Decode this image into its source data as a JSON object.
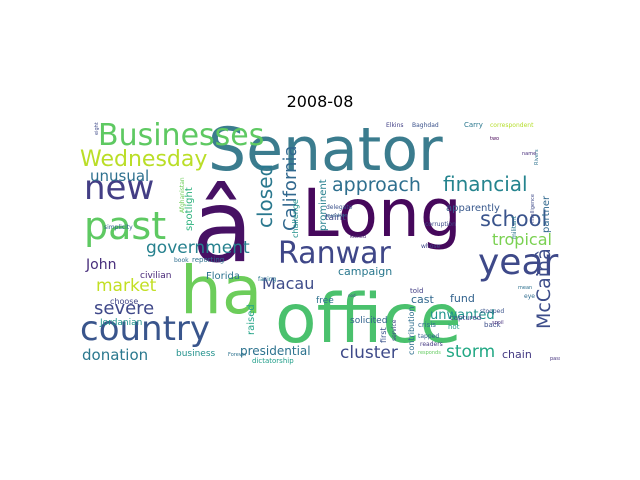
{
  "title": "2008-08",
  "words": [
    {
      "text": "Senator",
      "color": "#3b7c8e"
    },
    {
      "text": "Long",
      "color": "#46085c"
    },
    {
      "text": "â",
      "color": "#471164"
    },
    {
      "text": "ha",
      "color": "#6ccd5a"
    },
    {
      "text": "office",
      "color": "#4ac16d"
    },
    {
      "text": "Businesses",
      "color": "#5ec962"
    },
    {
      "text": "new",
      "color": "#433e85"
    },
    {
      "text": "past",
      "color": "#5ec962"
    },
    {
      "text": "country",
      "color": "#39558c"
    },
    {
      "text": "Ranwar",
      "color": "#3f4788"
    },
    {
      "text": "year",
      "color": "#3e4989"
    },
    {
      "text": "Wednesday",
      "color": "#bade28"
    },
    {
      "text": "government",
      "color": "#26818e"
    },
    {
      "text": "closed",
      "color": "#2a788e"
    },
    {
      "text": "California",
      "color": "#31688e"
    },
    {
      "text": "approach",
      "color": "#2e6f8e"
    },
    {
      "text": "financial",
      "color": "#25848e"
    },
    {
      "text": "school",
      "color": "#3a548c"
    },
    {
      "text": "tropical",
      "color": "#7ad151"
    },
    {
      "text": "unusual",
      "color": "#2d708e"
    },
    {
      "text": "McCainâ",
      "color": "#3d4d8a"
    },
    {
      "text": "market",
      "color": "#c2df23"
    },
    {
      "text": "severe",
      "color": "#3f4889"
    },
    {
      "text": "John",
      "color": "#472d7b"
    },
    {
      "text": "Macau",
      "color": "#3e4c8a"
    },
    {
      "text": "donation",
      "color": "#2a788e"
    },
    {
      "text": "cluster",
      "color": "#3e4a89"
    },
    {
      "text": "storm",
      "color": "#22a884"
    },
    {
      "text": "unwanted",
      "color": "#1f948c"
    },
    {
      "text": "campaign",
      "color": "#2a788e"
    },
    {
      "text": "presidential",
      "color": "#2c728e"
    },
    {
      "text": "fund",
      "color": "#33638d"
    },
    {
      "text": "chain",
      "color": "#443983"
    },
    {
      "text": "cast",
      "color": "#31688e"
    },
    {
      "text": "prominent",
      "color": "#27808e"
    },
    {
      "text": "Florida",
      "color": "#2c738e"
    },
    {
      "text": "spotlight",
      "color": "#2db27d"
    },
    {
      "text": "raised",
      "color": "#20a386"
    },
    {
      "text": "Jordanian",
      "color": "#20928c"
    },
    {
      "text": "business",
      "color": "#21918c"
    },
    {
      "text": "civilian",
      "color": "#482878"
    },
    {
      "text": "choose",
      "color": "#414487"
    },
    {
      "text": "partner",
      "color": "#31688e"
    },
    {
      "text": "solicited",
      "color": "#33638d"
    },
    {
      "text": "free",
      "color": "#2d708e"
    },
    {
      "text": "first",
      "color": "#3b528b"
    },
    {
      "text": "contribution",
      "color": "#2e6e8e"
    },
    {
      "text": "taint",
      "color": "#3e4989"
    },
    {
      "text": "apparently",
      "color": "#38588c"
    },
    {
      "text": "challenge",
      "color": "#21918c"
    },
    {
      "text": "Elkins",
      "color": "#424086"
    },
    {
      "text": "Baghdad",
      "color": "#3b528b"
    },
    {
      "text": "Carry",
      "color": "#2a778e"
    },
    {
      "text": "correspondent",
      "color": "#b5de2b"
    },
    {
      "text": "reporting",
      "color": "#2d708e"
    },
    {
      "text": "captured",
      "color": "#3f4788"
    },
    {
      "text": "Afghanistan",
      "color": "#6ece58"
    },
    {
      "text": "eight",
      "color": "#3e4a89"
    },
    {
      "text": "simplicity",
      "color": "#32648e"
    },
    {
      "text": "book",
      "color": "#2e6e8e"
    },
    {
      "text": "Forever",
      "color": "#2c728e"
    },
    {
      "text": "dictatorship",
      "color": "#1f9e89"
    },
    {
      "text": "service",
      "color": "#3f4788"
    },
    {
      "text": "readers",
      "color": "#453882"
    },
    {
      "text": "responds",
      "color": "#63cb5f"
    },
    {
      "text": "passed",
      "color": "#46337e"
    },
    {
      "text": "stooped",
      "color": "#3a538b"
    },
    {
      "text": "mean",
      "color": "#2d708e"
    },
    {
      "text": "militant",
      "color": "#2a788e"
    },
    {
      "text": "intelligence",
      "color": "#3e4989"
    },
    {
      "text": "Rivers",
      "color": "#2c728e"
    },
    {
      "text": "delegate",
      "color": "#3b528b"
    },
    {
      "text": "corruption",
      "color": "#3e4a89"
    },
    {
      "text": "told",
      "color": "#433e85"
    },
    {
      "text": "tapped",
      "color": "#34618d"
    },
    {
      "text": "crisis",
      "color": "#2f6c8e"
    },
    {
      "text": "hot",
      "color": "#1fa088"
    },
    {
      "text": "back",
      "color": "#3d4e8a"
    },
    {
      "text": "eye",
      "color": "#2f6b8e"
    },
    {
      "text": "whose",
      "color": "#3f4889"
    },
    {
      "text": "question",
      "color": "#33628d"
    },
    {
      "text": "facing",
      "color": "#2a788e"
    },
    {
      "text": "kicked",
      "color": "#481f70"
    },
    {
      "text": "name",
      "color": "#472c7a"
    },
    {
      "text": "spoil",
      "color": "#46307e"
    },
    {
      "text": "nod",
      "color": "#3c4f8a"
    },
    {
      "text": "two",
      "color": "#440154"
    }
  ]
}
